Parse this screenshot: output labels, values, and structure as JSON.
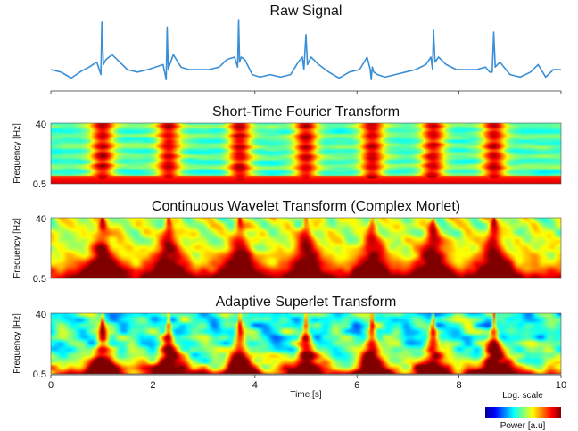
{
  "chart_data": [
    {
      "type": "line",
      "title": "Raw Signal",
      "xlim": [
        0,
        10
      ],
      "series": [
        {
          "x": [
            0,
            0.2,
            0.4,
            0.6,
            0.75,
            0.9,
            0.95,
            0.98,
            1.0,
            1.03,
            1.08,
            1.2,
            1.35,
            1.5,
            1.7,
            1.9,
            2.05,
            2.2,
            2.26,
            2.28,
            2.3,
            2.33,
            2.4,
            2.55,
            2.7,
            2.9,
            3.1,
            3.3,
            3.45,
            3.6,
            3.66,
            3.68,
            3.7,
            3.73,
            3.8,
            3.95,
            4.1,
            4.3,
            4.5,
            4.7,
            4.85,
            4.93,
            4.96,
            5.0,
            5.03,
            5.1,
            5.25,
            5.45,
            5.65,
            5.85,
            6.05,
            6.2,
            6.26,
            6.28,
            6.3,
            6.33,
            6.4,
            6.55,
            6.75,
            6.95,
            7.15,
            7.35,
            7.45,
            7.48,
            7.5,
            7.53,
            7.6,
            7.75,
            7.95,
            8.15,
            8.35,
            8.52,
            8.6,
            8.65,
            8.68,
            8.71,
            8.8,
            9.0,
            9.2,
            9.4,
            9.55,
            9.7,
            9.85,
            10.0
          ],
          "y": [
            0.05,
            0.0,
            -0.12,
            0.02,
            0.1,
            0.2,
            0.05,
            -0.05,
            1.0,
            0.15,
            0.25,
            0.35,
            0.2,
            0.05,
            0.0,
            0.05,
            0.1,
            0.15,
            -0.15,
            0.9,
            0.05,
            0.15,
            0.35,
            0.1,
            0.05,
            0.05,
            0.05,
            0.1,
            0.25,
            0.3,
            0.1,
            1.05,
            0.2,
            0.3,
            0.25,
            -0.05,
            -0.1,
            -0.05,
            -0.1,
            -0.05,
            0.2,
            0.3,
            0.05,
            0.75,
            0.15,
            0.3,
            0.15,
            0.0,
            -0.12,
            0.0,
            0.05,
            0.3,
            0.05,
            -0.15,
            0.1,
            0.0,
            -0.05,
            -0.1,
            -0.05,
            0.0,
            0.05,
            0.15,
            0.3,
            0.05,
            0.85,
            0.2,
            0.3,
            0.15,
            0.05,
            0.05,
            0.05,
            0.1,
            0.0,
            0.0,
            0.8,
            0.1,
            0.2,
            -0.05,
            -0.1,
            0.0,
            0.15,
            -0.1,
            0.05,
            0.05
          ]
        }
      ]
    },
    {
      "type": "heatmap",
      "title": "Short-Time Fourier Transform",
      "ylabel": "Frequency [Hz]",
      "yticks": [
        "40",
        "0.5"
      ],
      "xlim": [
        0,
        10
      ],
      "ylim": [
        0.5,
        40
      ],
      "event_times": [
        1.0,
        2.3,
        3.7,
        5.0,
        6.3,
        7.5,
        8.7
      ]
    },
    {
      "type": "heatmap",
      "title": "Continuous Wavelet Transform (Complex Morlet)",
      "ylabel": "Frequency [Hz]",
      "yticks": [
        "40",
        "0.5"
      ],
      "xlim": [
        0,
        10
      ],
      "ylim": [
        0.5,
        40
      ],
      "event_times": [
        1.0,
        2.3,
        3.7,
        5.0,
        6.3,
        7.5,
        8.7
      ]
    },
    {
      "type": "heatmap",
      "title": "Adaptive Superlet Transform",
      "ylabel": "Frequency [Hz]",
      "xlabel": "Time [s]",
      "yticks": [
        "40",
        "0.5"
      ],
      "xticks": [
        "0",
        "2",
        "4",
        "6",
        "8",
        "10"
      ],
      "xlim": [
        0,
        10
      ],
      "ylim": [
        0.5,
        40
      ],
      "event_times": [
        1.0,
        2.3,
        3.7,
        5.0,
        6.3,
        7.5,
        8.7
      ]
    }
  ],
  "colorbar": {
    "top_label": "Log. scale",
    "bottom_label": "Power [a.u]",
    "colormap": "jet"
  },
  "colors": {
    "signal_line": "#3a8fd6",
    "axis": "#333333"
  }
}
